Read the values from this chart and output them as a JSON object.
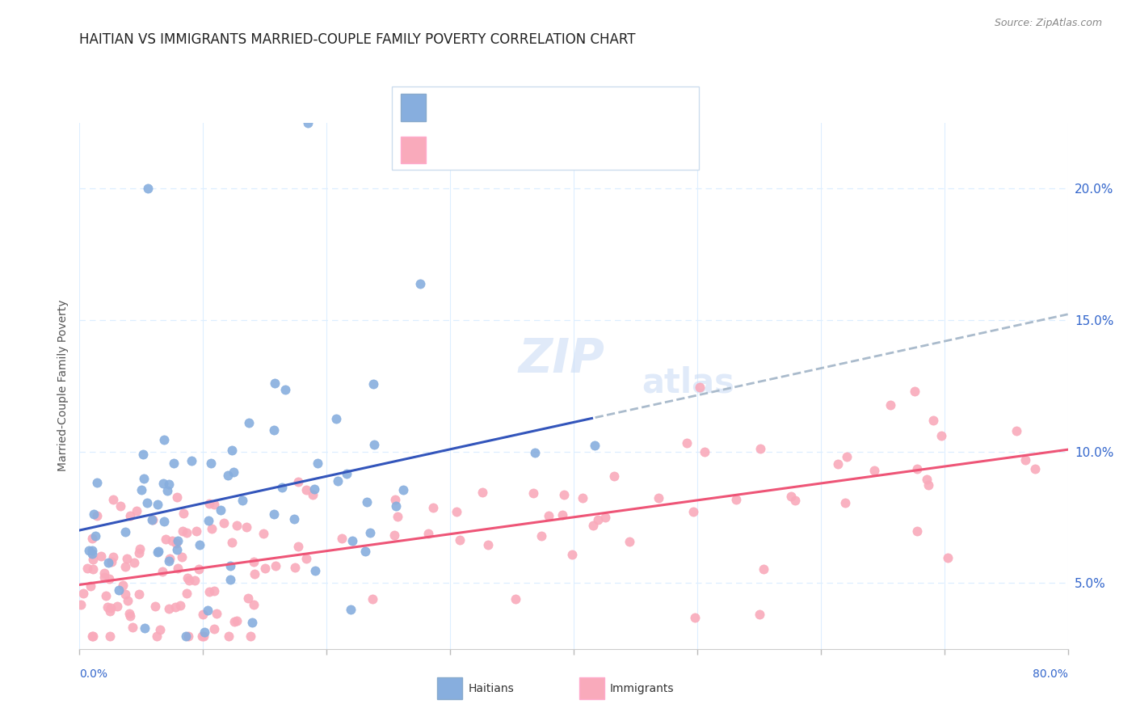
{
  "title": "HAITIAN VS IMMIGRANTS MARRIED-COUPLE FAMILY POVERTY CORRELATION CHART",
  "source": "Source: ZipAtlas.com",
  "ylabel": "Married-Couple Family Poverty",
  "right_yticks": [
    "5.0%",
    "10.0%",
    "15.0%",
    "20.0%"
  ],
  "right_ytick_vals": [
    0.05,
    0.1,
    0.15,
    0.2
  ],
  "xlim": [
    0.0,
    0.8
  ],
  "ylim": [
    0.025,
    0.225
  ],
  "blue_color": "#87AEDE",
  "pink_color": "#F9AABB",
  "trendline_blue": "#3355BB",
  "trendline_pink": "#EE5577",
  "trendline_dashed": "#AABBCC",
  "background_color": "#FFFFFF",
  "grid_color": "#DDEEFF",
  "title_color": "#222222",
  "axis_color": "#3366CC",
  "label_color": "#555555"
}
